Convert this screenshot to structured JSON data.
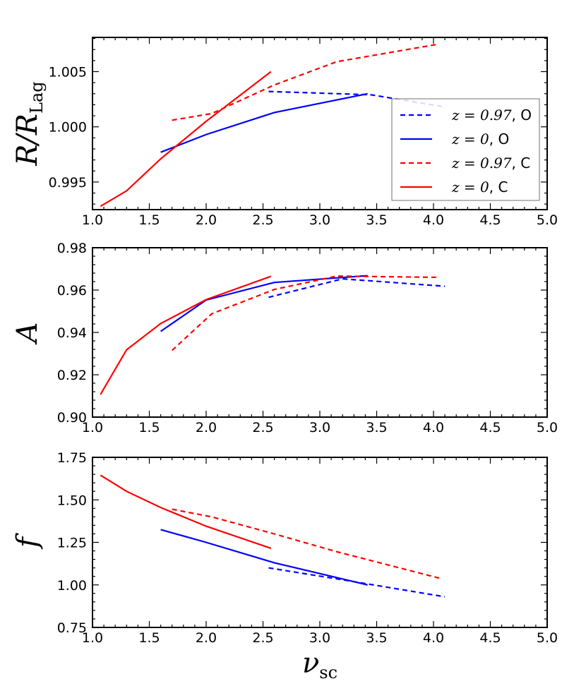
{
  "chart_data": [
    {
      "type": "line",
      "id": "ratio",
      "ylabel_main": "R/R",
      "ylabel_sub": "Lag",
      "xlim": [
        1.0,
        5.0
      ],
      "ylim": [
        0.9925,
        1.0081
      ],
      "yticks": [
        "0.995",
        "1.000",
        "1.005"
      ],
      "ytick_values": [
        0.995,
        1.0,
        1.005
      ],
      "xticks": [
        "1.0",
        "1.5",
        "2.0",
        "2.5",
        "3.0",
        "3.5",
        "4.0",
        "4.5",
        "5.0"
      ],
      "legend_position": "center-right",
      "series": [
        {
          "name": "z=0.97, O",
          "math": "z = 0.97",
          "tag": ", O",
          "color": "#0000ff",
          "dash": true,
          "x": [
            2.55,
            3.45,
            4.1
          ],
          "y": [
            1.0032,
            1.0029,
            1.0018
          ]
        },
        {
          "name": "z=0, O",
          "math": "z = 0",
          "tag": ", O",
          "color": "#0000ff",
          "dash": false,
          "x": [
            1.6,
            2.0,
            2.6,
            3.42
          ],
          "y": [
            0.9977,
            0.9993,
            1.0013,
            1.003
          ]
        },
        {
          "name": "z=0.97, C",
          "math": "z = 0.97",
          "tag": ", C",
          "color": "#ff0000",
          "dash": true,
          "x": [
            1.7,
            2.05,
            2.6,
            3.15,
            4.05
          ],
          "y": [
            1.0006,
            1.0012,
            1.0038,
            1.0059,
            1.0075
          ]
        },
        {
          "name": "z=0, C",
          "math": "z = 0",
          "tag": ", C",
          "color": "#ff0000",
          "dash": false,
          "x": [
            1.07,
            1.3,
            1.6,
            2.0,
            2.57
          ],
          "y": [
            0.9928,
            0.9942,
            0.9971,
            1.0005,
            1.005
          ]
        }
      ]
    },
    {
      "type": "line",
      "id": "amplitude",
      "ylabel_main": "A",
      "xlim": [
        1.0,
        5.0
      ],
      "ylim": [
        0.9,
        0.98
      ],
      "yticks": [
        "0.90",
        "0.92",
        "0.94",
        "0.96",
        "0.98"
      ],
      "ytick_values": [
        0.9,
        0.92,
        0.94,
        0.96,
        0.98
      ],
      "xticks": [
        "1.0",
        "1.5",
        "2.0",
        "2.5",
        "3.0",
        "3.5",
        "4.0",
        "4.5",
        "5.0"
      ],
      "series": [
        {
          "name": "z=0.97, O",
          "color": "#0000ff",
          "dash": true,
          "x": [
            2.55,
            3.2,
            4.1
          ],
          "y": [
            0.9566,
            0.9653,
            0.9618
          ]
        },
        {
          "name": "z=0, O",
          "color": "#0000ff",
          "dash": false,
          "x": [
            1.6,
            2.0,
            2.6,
            3.42
          ],
          "y": [
            0.9405,
            0.9553,
            0.9636,
            0.9668
          ]
        },
        {
          "name": "z=0.97, C",
          "color": "#ff0000",
          "dash": true,
          "x": [
            1.7,
            2.05,
            2.6,
            3.15,
            4.05
          ],
          "y": [
            0.9315,
            0.9488,
            0.9603,
            0.9666,
            0.966
          ]
        },
        {
          "name": "z=0, C",
          "color": "#ff0000",
          "dash": false,
          "x": [
            1.07,
            1.3,
            1.6,
            2.0,
            2.57
          ],
          "y": [
            0.9107,
            0.9318,
            0.9442,
            0.9555,
            0.9665
          ]
        }
      ]
    },
    {
      "type": "line",
      "id": "f",
      "ylabel_main": "f",
      "xlabel_main": "ν",
      "xlabel_sub": "sc",
      "xlim": [
        1.0,
        5.0
      ],
      "ylim": [
        0.75,
        1.75
      ],
      "yticks": [
        "0.75",
        "1.00",
        "1.25",
        "1.50",
        "1.75"
      ],
      "ytick_values": [
        0.75,
        1.0,
        1.25,
        1.5,
        1.75
      ],
      "xticks": [
        "1.0",
        "1.5",
        "2.0",
        "2.5",
        "3.0",
        "3.5",
        "4.0",
        "4.5",
        "5.0"
      ],
      "series": [
        {
          "name": "z=0.97, O",
          "color": "#0000ff",
          "dash": true,
          "x": [
            2.55,
            3.2,
            4.1
          ],
          "y": [
            1.1,
            1.03,
            0.93
          ]
        },
        {
          "name": "z=0, O",
          "color": "#0000ff",
          "dash": false,
          "x": [
            1.6,
            2.0,
            2.6,
            3.42
          ],
          "y": [
            1.325,
            1.25,
            1.13,
            1.0
          ]
        },
        {
          "name": "z=0.97, C",
          "color": "#ff0000",
          "dash": true,
          "x": [
            1.7,
            2.05,
            2.6,
            3.15,
            4.05
          ],
          "y": [
            1.445,
            1.4,
            1.3,
            1.195,
            1.04
          ]
        },
        {
          "name": "z=0, C",
          "color": "#ff0000",
          "dash": false,
          "x": [
            1.07,
            1.3,
            1.6,
            2.0,
            2.57
          ],
          "y": [
            1.645,
            1.55,
            1.455,
            1.345,
            1.215
          ]
        }
      ]
    }
  ]
}
